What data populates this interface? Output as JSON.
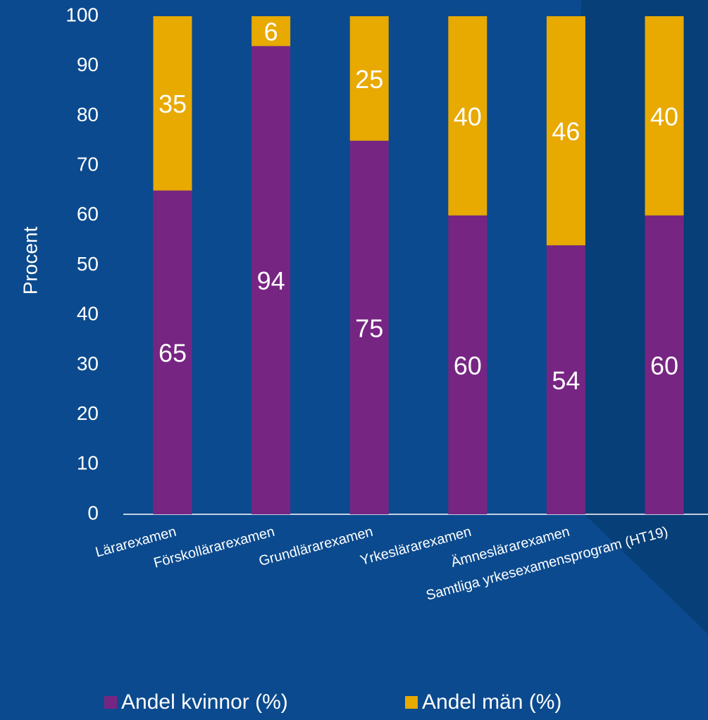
{
  "chart_data": {
    "type": "stacked_bar",
    "ylabel": "Procent",
    "categories": [
      "Lärarexamen",
      "Förskollärarexamen",
      "Grundlärarexamen",
      "Yrkeslärarexamen",
      "Ämneslärarexamen",
      "Samtliga yrkesexamensprogram (HT19)"
    ],
    "series": [
      {
        "name": "Andel kvinnor (%)",
        "color": "#772583",
        "values": [
          65,
          94,
          75,
          60,
          54,
          60
        ]
      },
      {
        "name": "Andel män (%)",
        "color": "#e8a900",
        "values": [
          35,
          6,
          25,
          40,
          46,
          40
        ]
      }
    ],
    "ylim": [
      0,
      100
    ],
    "yticks": [
      0,
      10,
      20,
      30,
      40,
      50,
      60,
      70,
      80,
      90,
      100
    ],
    "grid": false,
    "legend": "bottom"
  }
}
